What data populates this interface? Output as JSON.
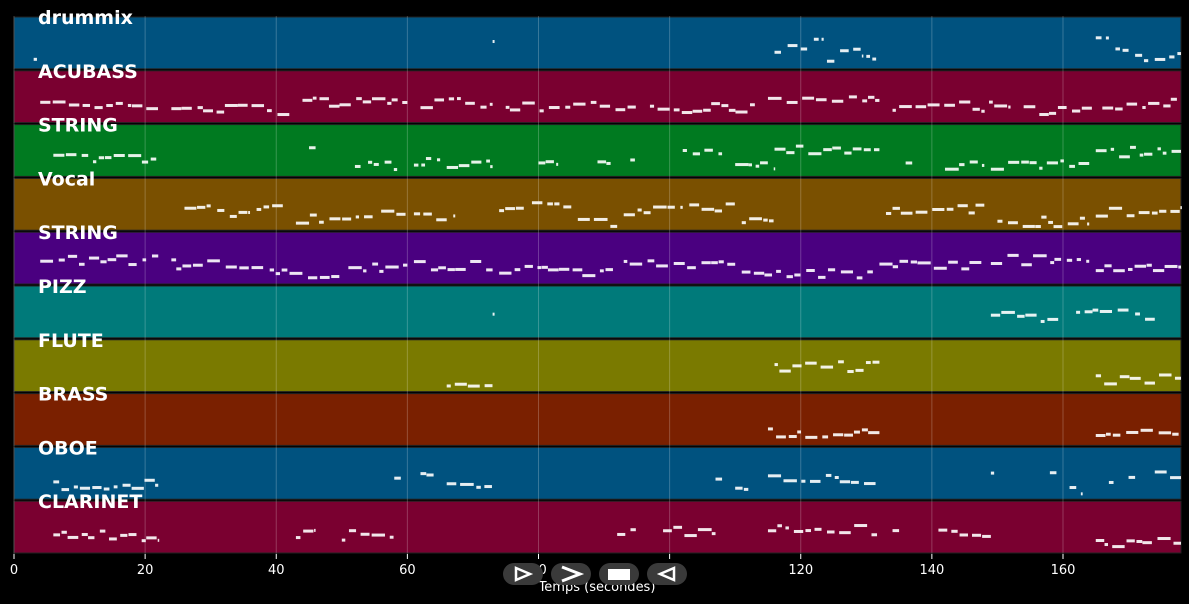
{
  "chart_data": {
    "type": "piano-roll",
    "xlabel": "Temps (secondes)",
    "xlim": [
      0,
      178
    ],
    "xticks": [
      0,
      20,
      40,
      60,
      80,
      100,
      120,
      140,
      160
    ],
    "grid": true,
    "tracks": [
      {
        "name": "drummix",
        "color": "#00527f",
        "segments": [
          [
            3,
            3.5
          ],
          [
            73,
            73.3
          ],
          [
            116,
            117.5
          ],
          [
            118,
            119.5
          ],
          [
            120,
            121.5
          ],
          [
            122,
            123.5
          ],
          [
            124,
            125.5
          ],
          [
            126,
            127.5
          ],
          [
            128,
            129.5
          ],
          [
            130,
            131.5
          ],
          [
            165,
            167
          ],
          [
            168,
            170
          ],
          [
            171,
            173
          ],
          [
            174,
            178
          ]
        ]
      },
      {
        "name": "ACUBASS",
        "color": "#7a0030",
        "segments": [
          [
            4,
            22
          ],
          [
            24,
            42
          ],
          [
            44,
            60
          ],
          [
            62,
            73
          ],
          [
            75,
            95
          ],
          [
            97,
            113
          ],
          [
            115,
            132
          ],
          [
            134,
            152
          ],
          [
            154,
            165
          ],
          [
            166,
            178
          ]
        ]
      },
      {
        "name": "STRING",
        "color": "#007a20",
        "segments": [
          [
            6,
            22
          ],
          [
            45,
            46
          ],
          [
            52,
            53
          ],
          [
            54,
            59
          ],
          [
            61,
            65
          ],
          [
            66,
            73
          ],
          [
            80,
            83
          ],
          [
            89,
            91
          ],
          [
            94,
            95
          ],
          [
            102,
            108
          ],
          [
            110,
            116
          ],
          [
            116,
            132
          ],
          [
            136,
            137
          ],
          [
            142,
            148
          ],
          [
            149,
            164
          ],
          [
            165,
            178
          ]
        ]
      },
      {
        "name": "Vocal",
        "color": "#7a5000",
        "segments": [
          [
            26,
            30
          ],
          [
            31,
            36
          ],
          [
            37,
            41
          ],
          [
            43,
            55
          ],
          [
            56,
            60
          ],
          [
            61,
            66
          ],
          [
            67,
            66.5
          ],
          [
            74,
            78
          ],
          [
            79,
            85
          ],
          [
            86,
            92
          ],
          [
            93,
            102
          ],
          [
            103,
            110
          ],
          [
            111,
            116
          ],
          [
            133,
            148
          ],
          [
            150,
            164
          ],
          [
            165,
            178
          ]
        ]
      },
      {
        "name": "STRING",
        "color": "#4a0080",
        "segments": [
          [
            4,
            22
          ],
          [
            24,
            38
          ],
          [
            39,
            50
          ],
          [
            51,
            60
          ],
          [
            61,
            73
          ],
          [
            74,
            92
          ],
          [
            93,
            110
          ],
          [
            111,
            131
          ],
          [
            132,
            148
          ],
          [
            149,
            164
          ],
          [
            165,
            178
          ]
        ]
      },
      {
        "name": "PIZZ",
        "color": "#007a7a",
        "segments": [
          [
            73,
            73.3
          ],
          [
            149,
            153
          ],
          [
            153,
            160
          ],
          [
            162,
            170
          ],
          [
            171,
            174
          ]
        ]
      },
      {
        "name": "FLUTE",
        "color": "#7a7a00",
        "segments": [
          [
            66,
            73
          ],
          [
            116,
            132
          ],
          [
            165,
            178
          ]
        ]
      },
      {
        "name": "BRASS",
        "color": "#7a2000",
        "segments": [
          [
            115,
            132
          ],
          [
            165,
            178
          ]
        ]
      },
      {
        "name": "OBOE",
        "color": "#00527f",
        "segments": [
          [
            6,
            22
          ],
          [
            58,
            59
          ],
          [
            62,
            64
          ],
          [
            66,
            73
          ],
          [
            107,
            108
          ],
          [
            110,
            112
          ],
          [
            115,
            132
          ],
          [
            149,
            149.5
          ],
          [
            158,
            159
          ],
          [
            161,
            163
          ],
          [
            167,
            168
          ],
          [
            170,
            171
          ],
          [
            174,
            178
          ]
        ]
      },
      {
        "name": "CLARINET",
        "color": "#7a0030",
        "segments": [
          [
            6,
            22
          ],
          [
            43,
            46
          ],
          [
            50,
            58
          ],
          [
            92,
            95
          ],
          [
            99,
            107
          ],
          [
            115,
            132
          ],
          [
            134,
            135
          ],
          [
            141,
            149
          ],
          [
            165,
            178
          ]
        ]
      }
    ]
  },
  "controls": [
    {
      "name": "play-forward",
      "icon": "play-outline-icon"
    },
    {
      "name": "next",
      "icon": "chevron-right-icon"
    },
    {
      "name": "stop",
      "icon": "stop-icon"
    },
    {
      "name": "play-backward",
      "icon": "play-reverse-outline-icon"
    }
  ]
}
